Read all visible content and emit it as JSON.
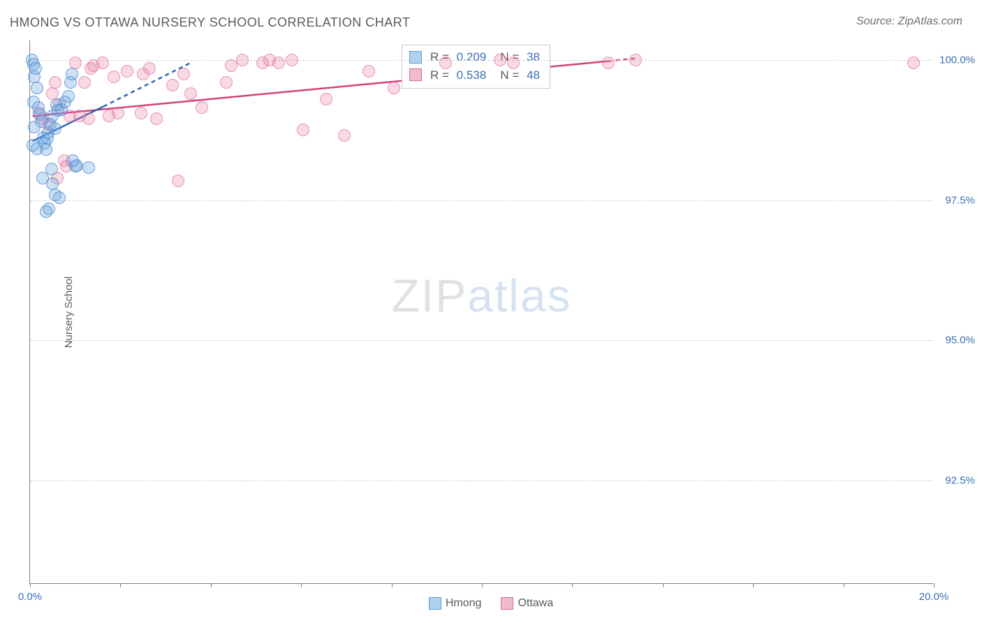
{
  "title": "HMONG VS OTTAWA NURSERY SCHOOL CORRELATION CHART",
  "source": "Source: ZipAtlas.com",
  "ylabel": "Nursery School",
  "watermark_a": "ZIP",
  "watermark_b": "atlas",
  "chart": {
    "type": "scatter",
    "xlim": [
      0,
      20
    ],
    "ylim": [
      90.65,
      100.35
    ],
    "background_color": "#ffffff",
    "grid_color": "#d4d4d4",
    "axis_color": "#808080",
    "text_color": "#5a5a5a",
    "xtick_positions": [
      0,
      2,
      4,
      6,
      8,
      10,
      12,
      14,
      16,
      18,
      20
    ],
    "xtick_labels": {
      "0": "0.0%",
      "20": "20.0%"
    },
    "yticks": [
      92.5,
      95.0,
      97.5,
      100.0
    ],
    "ytick_labels": [
      "92.5%",
      "95.0%",
      "97.5%",
      "100.0%"
    ],
    "label_color": "#3b6fb6",
    "label_fontsize": 15,
    "title_fontsize": 18,
    "marker_radius": 9,
    "series": {
      "hmong": {
        "label": "Hmong",
        "color_fill": "rgba(111,169,227,0.35)",
        "color_stroke": "#5a9bdc",
        "R": 0.209,
        "N": 38,
        "trend_solid": [
          [
            0.05,
            98.55
          ],
          [
            1.62,
            99.17
          ]
        ],
        "trend_dash": [
          [
            1.62,
            99.17
          ],
          [
            3.55,
            99.95
          ]
        ],
        "trend_color": "#2f68b5",
        "points": [
          [
            0.05,
            100.0
          ],
          [
            0.08,
            99.92
          ],
          [
            0.1,
            99.7
          ],
          [
            0.12,
            99.85
          ],
          [
            0.15,
            99.5
          ],
          [
            0.07,
            99.25
          ],
          [
            0.18,
            99.15
          ],
          [
            0.22,
            99.03
          ],
          [
            0.25,
            98.9
          ],
          [
            0.1,
            98.8
          ],
          [
            0.3,
            98.62
          ],
          [
            0.32,
            98.52
          ],
          [
            0.15,
            98.42
          ],
          [
            0.06,
            98.48
          ],
          [
            0.35,
            98.4
          ],
          [
            0.38,
            98.6
          ],
          [
            0.4,
            98.7
          ],
          [
            0.45,
            98.85
          ],
          [
            0.5,
            99.0
          ],
          [
            0.58,
            99.2
          ],
          [
            0.62,
            99.1
          ],
          [
            0.7,
            99.12
          ],
          [
            0.78,
            99.25
          ],
          [
            0.85,
            99.35
          ],
          [
            0.9,
            99.6
          ],
          [
            1.0,
            98.1
          ],
          [
            1.04,
            98.12
          ],
          [
            1.3,
            98.08
          ],
          [
            0.95,
            98.2
          ],
          [
            0.92,
            99.75
          ],
          [
            0.55,
            98.78
          ],
          [
            0.48,
            98.05
          ],
          [
            0.55,
            97.6
          ],
          [
            0.5,
            97.8
          ],
          [
            0.65,
            97.55
          ],
          [
            0.42,
            97.35
          ],
          [
            0.35,
            97.3
          ],
          [
            0.28,
            97.9
          ]
        ]
      },
      "ottawa": {
        "label": "Ottawa",
        "color_fill": "rgba(231,130,165,0.30)",
        "color_stroke": "#d46b99",
        "R": 0.538,
        "N": 48,
        "trend_solid": [
          [
            0.05,
            99.0
          ],
          [
            12.8,
            99.98
          ]
        ],
        "trend_dash": [
          [
            12.8,
            99.98
          ],
          [
            13.4,
            100.03
          ]
        ],
        "trend_color": "#d2417c",
        "points": [
          [
            0.2,
            99.05
          ],
          [
            0.3,
            98.95
          ],
          [
            0.4,
            98.85
          ],
          [
            0.5,
            99.4
          ],
          [
            0.55,
            99.6
          ],
          [
            0.6,
            97.9
          ],
          [
            0.65,
            99.2
          ],
          [
            0.75,
            98.2
          ],
          [
            0.8,
            98.1
          ],
          [
            0.88,
            99.0
          ],
          [
            1.0,
            99.95
          ],
          [
            1.1,
            99.0
          ],
          [
            1.2,
            99.6
          ],
          [
            1.3,
            98.95
          ],
          [
            1.35,
            99.85
          ],
          [
            1.4,
            99.9
          ],
          [
            1.6,
            99.95
          ],
          [
            1.75,
            99.0
          ],
          [
            1.85,
            99.7
          ],
          [
            1.95,
            99.05
          ],
          [
            2.15,
            99.8
          ],
          [
            2.45,
            99.05
          ],
          [
            2.5,
            99.75
          ],
          [
            2.65,
            99.85
          ],
          [
            2.8,
            98.95
          ],
          [
            3.15,
            99.55
          ],
          [
            3.28,
            97.85
          ],
          [
            3.4,
            99.75
          ],
          [
            3.55,
            99.4
          ],
          [
            3.8,
            99.15
          ],
          [
            4.35,
            99.6
          ],
          [
            4.45,
            99.9
          ],
          [
            4.7,
            100.0
          ],
          [
            5.15,
            99.95
          ],
          [
            5.3,
            100.0
          ],
          [
            5.5,
            99.95
          ],
          [
            5.8,
            100.0
          ],
          [
            6.05,
            98.75
          ],
          [
            6.55,
            99.3
          ],
          [
            6.95,
            98.65
          ],
          [
            7.5,
            99.8
          ],
          [
            8.05,
            99.5
          ],
          [
            9.2,
            99.95
          ],
          [
            10.4,
            100.0
          ],
          [
            10.7,
            99.95
          ],
          [
            12.8,
            99.95
          ],
          [
            13.4,
            100.0
          ],
          [
            19.55,
            99.95
          ]
        ]
      }
    },
    "info_box": {
      "rows": [
        {
          "swatch": "blue",
          "r": "0.209",
          "n": "38"
        },
        {
          "swatch": "pink",
          "r": "0.538",
          "n": "48"
        }
      ],
      "r_prefix": "R = ",
      "n_prefix": "   N = "
    },
    "legend": [
      {
        "swatch": "blue",
        "label": "Hmong"
      },
      {
        "swatch": "pink",
        "label": "Ottawa"
      }
    ]
  }
}
